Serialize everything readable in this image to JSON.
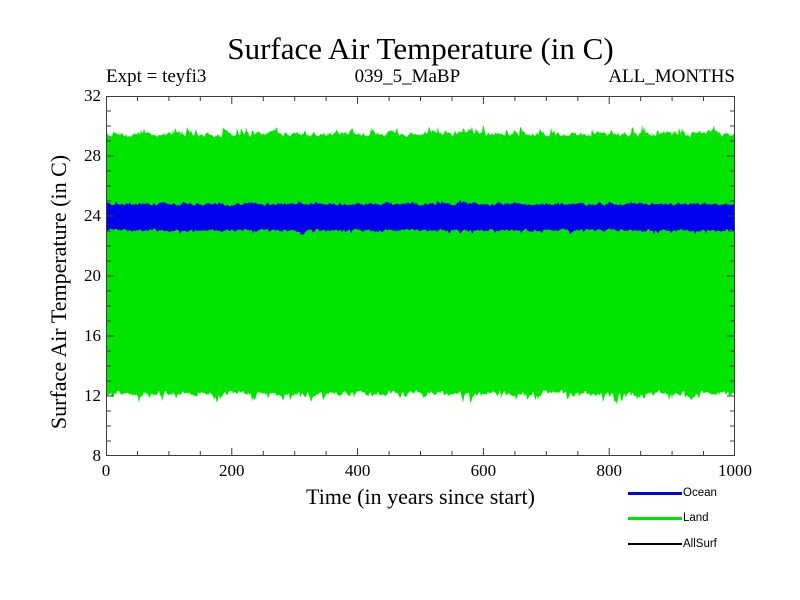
{
  "header": {
    "title": "Surface Air Temperature (in C)",
    "left_annotation": "Expt = teyfi3",
    "center_annotation": "039_5_MaBP",
    "right_annotation": "ALL_MONTHS"
  },
  "chart_data": {
    "type": "area",
    "title": "Surface Air Temperature (in C)",
    "xlabel": "Time (in years since start)",
    "ylabel": "Surface Air Temperature (in C)",
    "xlim": [
      0,
      1000
    ],
    "ylim": [
      8,
      32
    ],
    "x_ticks_major": [
      0,
      200,
      400,
      600,
      800,
      1000
    ],
    "x_minor_step": 50,
    "y_ticks_major": [
      8,
      12,
      16,
      20,
      24,
      28,
      32
    ],
    "y_minor_step": 1,
    "grid": false,
    "legend_position": "below-right",
    "frame_color": "#3c3c3c",
    "series": [
      {
        "name": "Land",
        "color": "#00e400",
        "band_top_mean": 29.45,
        "band_bottom_mean": 12.2,
        "top_max": 30.15,
        "bottom_min": 10.9,
        "edge_jitter": 0.3,
        "spike_prob": 0.16,
        "spike_max": 0.95,
        "seed": 41
      },
      {
        "name": "AllSurf",
        "color": "#000000",
        "band_top_mean": 24.4,
        "band_bottom_mean": 23.6,
        "top_max": 24.6,
        "bottom_min": 23.4,
        "edge_jitter": 0.1,
        "spike_prob": 0.0,
        "spike_max": 0,
        "seed": 55
      },
      {
        "name": "Ocean",
        "color": "#0000ee",
        "band_top_mean": 24.78,
        "band_bottom_mean": 23.05,
        "top_max": 25.15,
        "bottom_min": 22.6,
        "edge_jitter": 0.16,
        "spike_prob": 0.1,
        "spike_max": 0.4,
        "seed": 77
      }
    ]
  },
  "legend": {
    "items": [
      {
        "label": "Ocean",
        "color": "#0000ee",
        "thickness": 3
      },
      {
        "label": "Land",
        "color": "#00e400",
        "thickness": 3
      },
      {
        "label": "AllSurf",
        "color": "#000000",
        "thickness": 2
      }
    ]
  }
}
